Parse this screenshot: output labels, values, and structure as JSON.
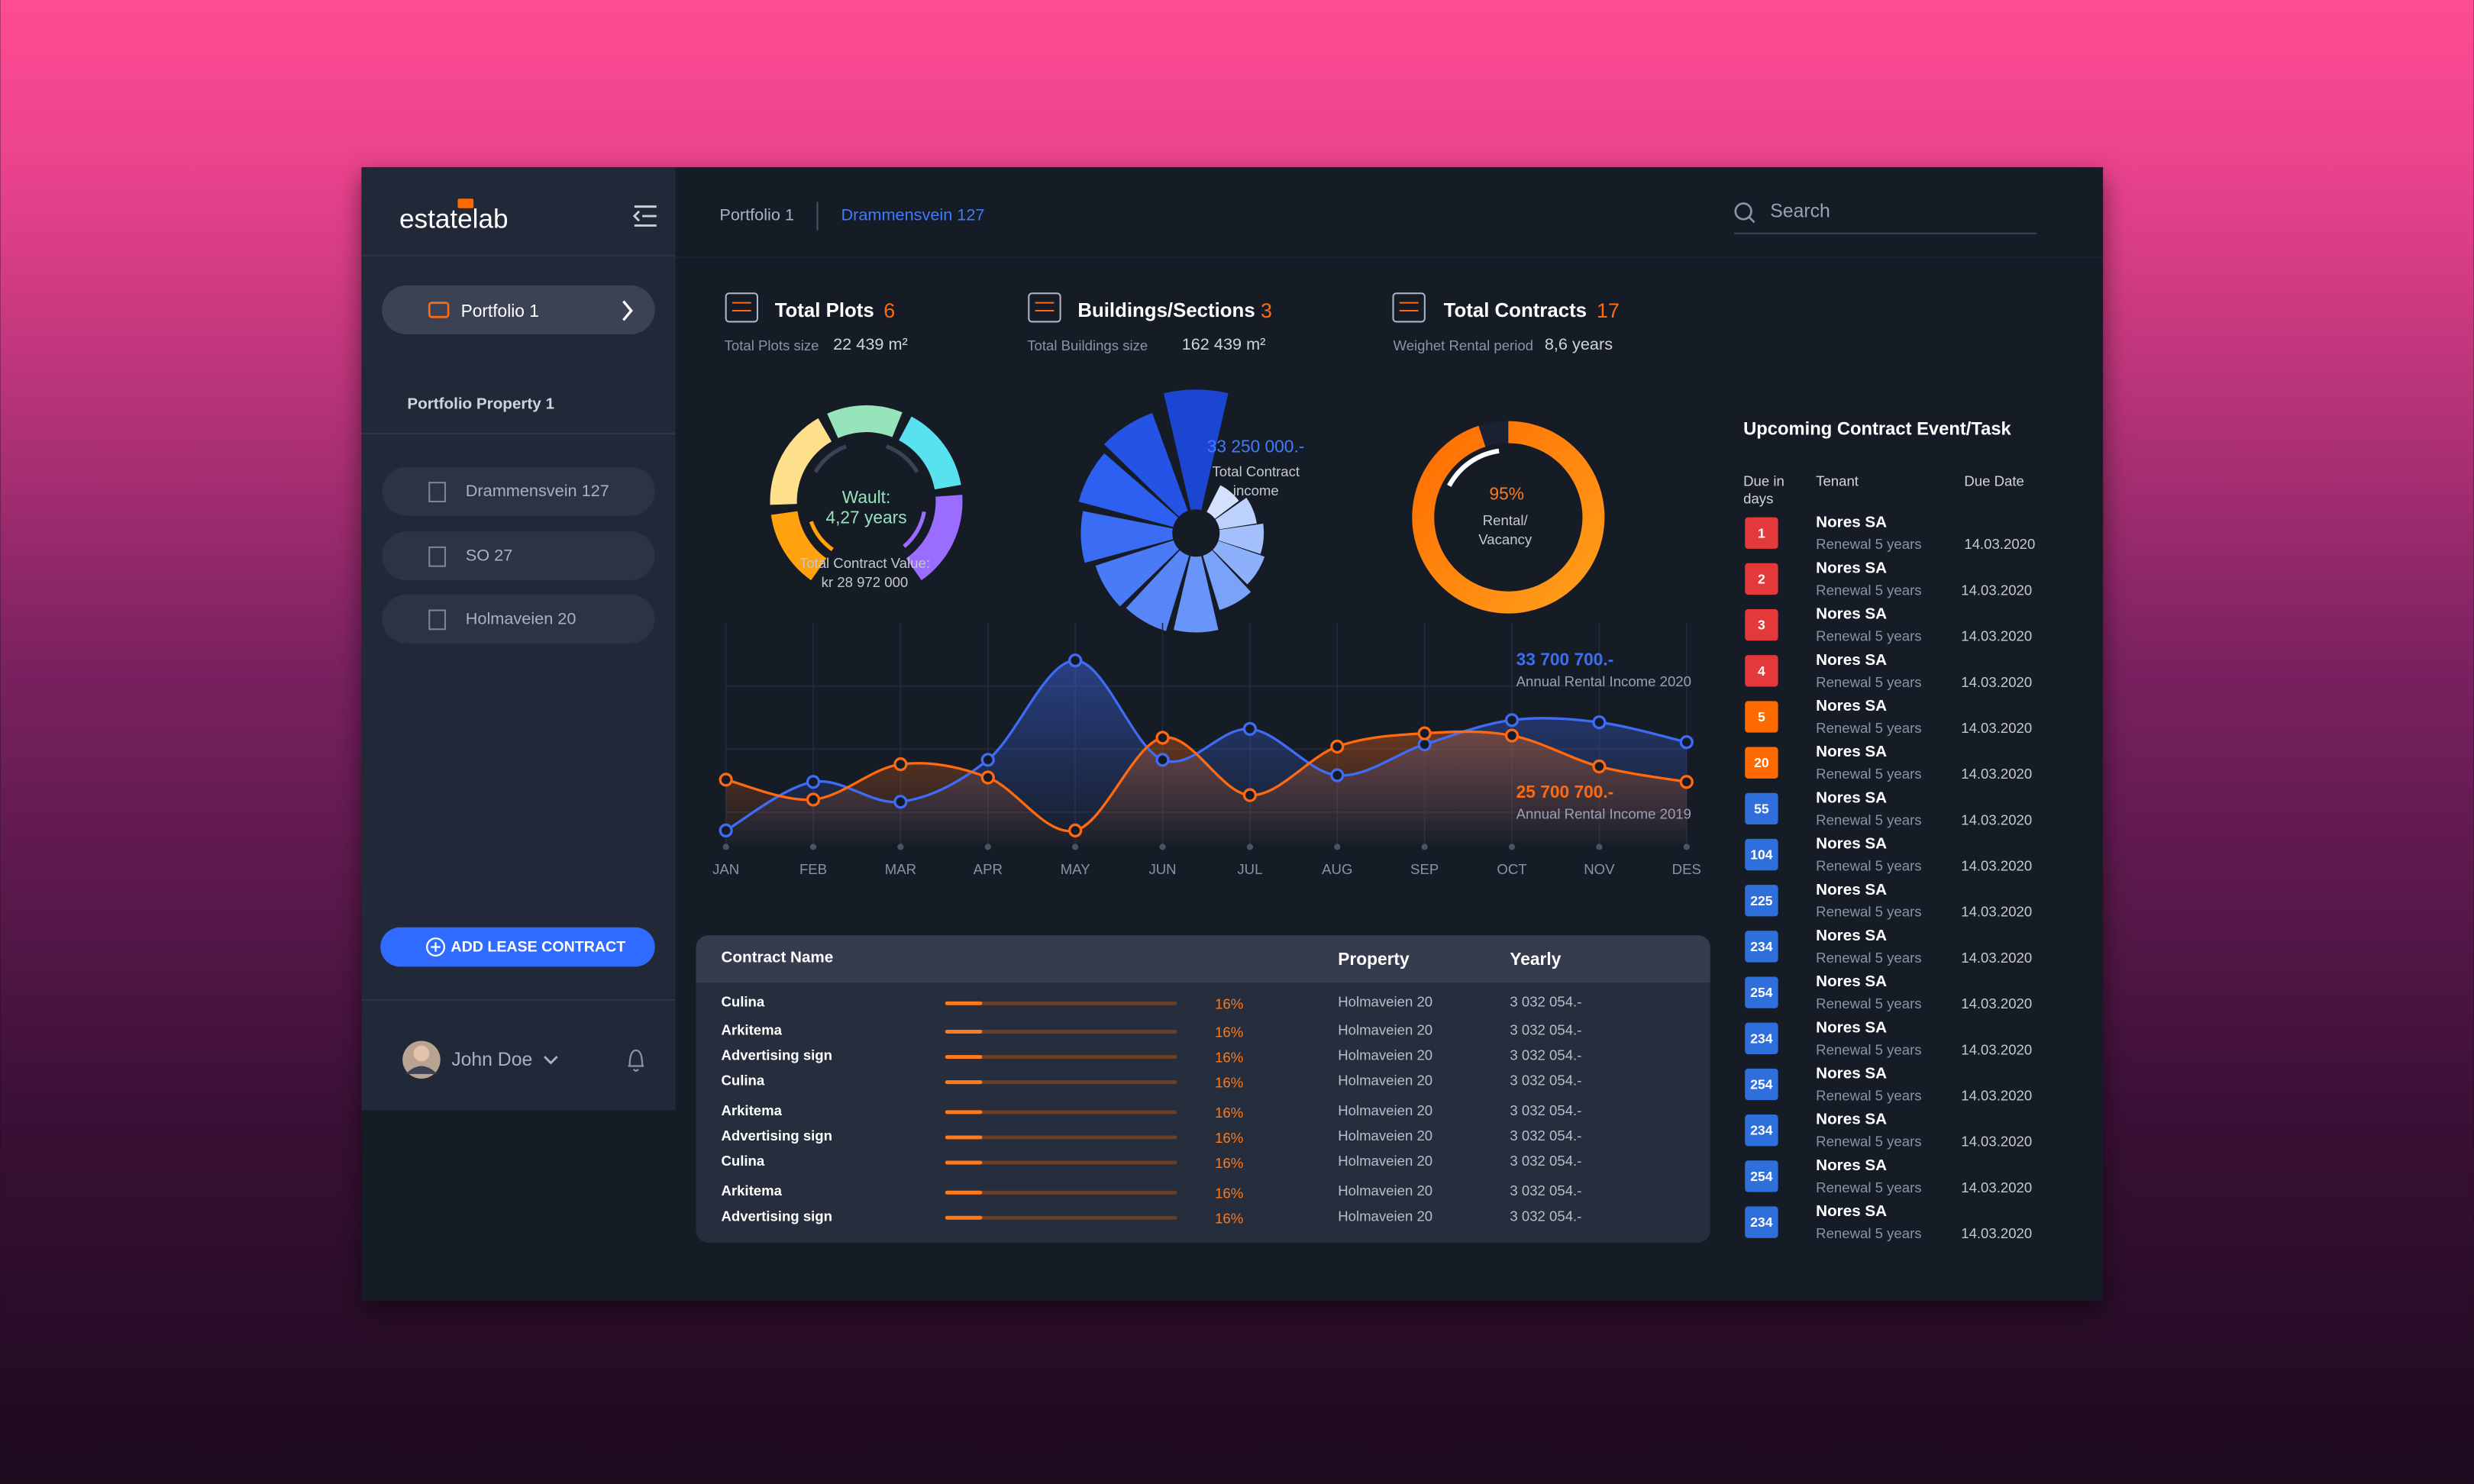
{
  "sidebar": {
    "logo": "estatelab",
    "portfolio_button": "Portfolio 1",
    "section_title": "Portfolio Property 1",
    "properties": [
      "Drammensvein 127",
      "SO 27",
      "Holmaveien 20"
    ],
    "add_button": "ADD LEASE CONTRACT",
    "user": "John Doe"
  },
  "header": {
    "breadcrumb": [
      "Portfolio 1",
      "Drammensvein 127"
    ],
    "search_placeholder": "Search"
  },
  "stats": [
    {
      "title": "Total Plots",
      "value": 6,
      "sub_label": "Total Plots size",
      "sub_value": "22 439 m²"
    },
    {
      "title": "Buildings/Sections",
      "value": 3,
      "sub_label": "Total Buildings size",
      "sub_value": "162 439 m²"
    },
    {
      "title": "Total Contracts",
      "value": 17,
      "sub_label": "Weighet Rental period",
      "sub_value": "8,6 years"
    }
  ],
  "wault": {
    "label": "Wault:",
    "value": "4,27 years",
    "caption": "Total Contract Value:",
    "caption_value": "kr 28 972 000"
  },
  "income": {
    "value": "33 250 000.-",
    "label_lines": [
      "Total Contract",
      "income"
    ]
  },
  "rental": {
    "value": 95,
    "value_label": "95%",
    "label_lines": [
      "Rental/",
      "Vacancy"
    ]
  },
  "chart_data": {
    "type": "line",
    "categories": [
      "JAN",
      "FEB",
      "MAR",
      "APR",
      "MAY",
      "JUN",
      "JUL",
      "AUG",
      "SEP",
      "OCT",
      "NOV",
      "DES"
    ],
    "ylim": [
      0,
      100
    ],
    "series": [
      {
        "name": "Annual Rental Income 2020",
        "total": "33 700 700.-",
        "color": "#3f6cf5",
        "values": [
          6,
          28,
          19,
          38,
          83,
          38,
          52,
          31,
          45,
          56,
          55,
          46
        ]
      },
      {
        "name": "Annual Rental Income 2019",
        "total": "25 700 700.-",
        "color": "#ff6a10",
        "values": [
          29,
          20,
          36,
          30,
          6,
          48,
          22,
          44,
          50,
          49,
          35,
          28
        ]
      }
    ]
  },
  "contracts": {
    "headers": [
      "Contract Name",
      "Property",
      "Yearly"
    ],
    "rows": [
      {
        "name": "Culina",
        "share": 16,
        "share_label": "16%",
        "property": "Holmaveien 20",
        "yearly": "3 032 054.-"
      },
      {
        "name": "Arkitema",
        "share": 16,
        "share_label": "16%",
        "property": "Holmaveien 20",
        "yearly": "3 032 054.-"
      },
      {
        "name": "Advertising sign",
        "share": 16,
        "share_label": "16%",
        "property": "Holmaveien 20",
        "yearly": "3 032 054.-"
      },
      {
        "name": "Culina",
        "share": 16,
        "share_label": "16%",
        "property": "Holmaveien 20",
        "yearly": "3 032 054.-"
      },
      {
        "name": "Arkitema",
        "share": 16,
        "share_label": "16%",
        "property": "Holmaveien 20",
        "yearly": "3 032 054.-"
      },
      {
        "name": "Advertising sign",
        "share": 16,
        "share_label": "16%",
        "property": "Holmaveien 20",
        "yearly": "3 032 054.-"
      },
      {
        "name": "Culina",
        "share": 16,
        "share_label": "16%",
        "property": "Holmaveien 20",
        "yearly": "3 032 054.-"
      },
      {
        "name": "Arkitema",
        "share": 16,
        "share_label": "16%",
        "property": "Holmaveien 20",
        "yearly": "3 032 054.-"
      },
      {
        "name": "Advertising sign",
        "share": 16,
        "share_label": "16%",
        "property": "Holmaveien 20",
        "yearly": "3 032 054.-"
      }
    ]
  },
  "tasks": {
    "title": "Upcoming Contract Event/Task",
    "due_header": [
      "Due in",
      "days"
    ],
    "tenant_header": "Tenant",
    "date_header": "Due Date",
    "rows": [
      {
        "days": 1,
        "color": "#e3393b",
        "tenant": "Nores SA",
        "event": "Renewal 5 years",
        "date": "14.03.2020"
      },
      {
        "days": 2,
        "color": "#e3393b",
        "tenant": "Nores SA",
        "event": "Renewal 5 years",
        "date": "14.03.2020"
      },
      {
        "days": 3,
        "color": "#e3393b",
        "tenant": "Nores SA",
        "event": "Renewal 5 years",
        "date": "14.03.2020"
      },
      {
        "days": 4,
        "color": "#e3393b",
        "tenant": "Nores SA",
        "event": "Renewal 5 years",
        "date": "14.03.2020"
      },
      {
        "days": 5,
        "color": "#ff6a00",
        "tenant": "Nores SA",
        "event": "Renewal 5 years",
        "date": "14.03.2020"
      },
      {
        "days": 20,
        "color": "#ff6a00",
        "tenant": "Nores SA",
        "event": "Renewal 5 years",
        "date": "14.03.2020"
      },
      {
        "days": 55,
        "color": "#2f6fdc",
        "tenant": "Nores SA",
        "event": "Renewal 5 years",
        "date": "14.03.2020"
      },
      {
        "days": 104,
        "color": "#2f6fdc",
        "tenant": "Nores SA",
        "event": "Renewal 5 years",
        "date": "14.03.2020"
      },
      {
        "days": 225,
        "color": "#2f6fdc",
        "tenant": "Nores SA",
        "event": "Renewal 5 years",
        "date": "14.03.2020"
      },
      {
        "days": 234,
        "color": "#2f6fdc",
        "tenant": "Nores SA",
        "event": "Renewal 5 years",
        "date": "14.03.2020"
      },
      {
        "days": 254,
        "color": "#2f6fdc",
        "tenant": "Nores SA",
        "event": "Renewal 5 years",
        "date": "14.03.2020"
      },
      {
        "days": 234,
        "color": "#2f6fdc",
        "tenant": "Nores SA",
        "event": "Renewal 5 years",
        "date": "14.03.2020"
      },
      {
        "days": 254,
        "color": "#2f6fdc",
        "tenant": "Nores SA",
        "event": "Renewal 5 years",
        "date": "14.03.2020"
      },
      {
        "days": 234,
        "color": "#2f6fdc",
        "tenant": "Nores SA",
        "event": "Renewal 5 years",
        "date": "14.03.2020"
      },
      {
        "days": 254,
        "color": "#2f6fdc",
        "tenant": "Nores SA",
        "event": "Renewal 5 years",
        "date": "14.03.2020"
      },
      {
        "days": 234,
        "color": "#2f6fdc",
        "tenant": "Nores SA",
        "event": "Renewal 5 years",
        "date": "14.03.2020"
      }
    ]
  }
}
